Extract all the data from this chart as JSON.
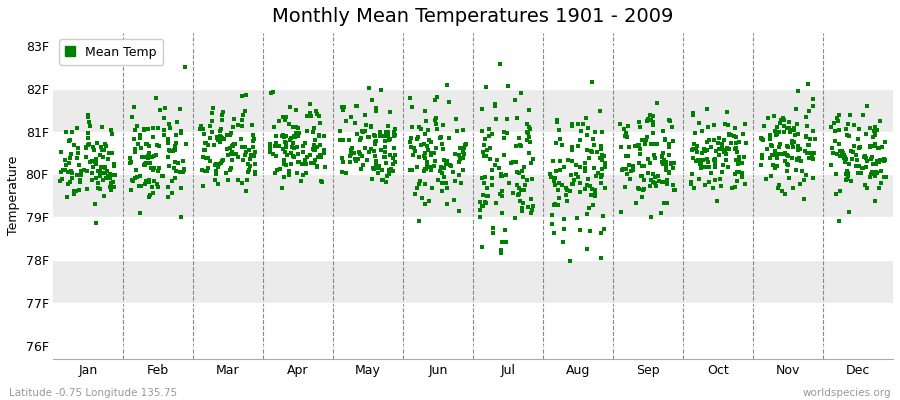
{
  "title": "Monthly Mean Temperatures 1901 - 2009",
  "ylabel": "Temperature",
  "xlabel_labels": [
    "Jan",
    "Feb",
    "Mar",
    "Apr",
    "May",
    "Jun",
    "Jul",
    "Aug",
    "Sep",
    "Oct",
    "Nov",
    "Dec"
  ],
  "ytick_labels": [
    "76F",
    "77F",
    "78F",
    "79F",
    "80F",
    "81F",
    "82F",
    "83F"
  ],
  "ytick_values": [
    76,
    77,
    78,
    79,
    80,
    81,
    82,
    83
  ],
  "ylim": [
    75.7,
    83.3
  ],
  "dot_color": "#008000",
  "dot_size": 5,
  "background_color": "#ffffff",
  "band_colors": [
    "#ffffff",
    "#ebebeb"
  ],
  "legend_label": "Mean Temp",
  "subtitle": "Latitude -0.75 Longitude 135.75",
  "watermark": "worldspecies.org",
  "title_fontsize": 14,
  "label_fontsize": 9,
  "tick_fontsize": 9,
  "num_years": 109,
  "monthly_means": [
    80.2,
    80.35,
    80.55,
    80.65,
    80.75,
    80.5,
    80.05,
    79.95,
    80.35,
    80.4,
    80.65,
    80.5
  ],
  "monthly_stds": [
    0.45,
    0.55,
    0.5,
    0.48,
    0.52,
    0.65,
    0.75,
    0.75,
    0.55,
    0.5,
    0.58,
    0.5
  ]
}
